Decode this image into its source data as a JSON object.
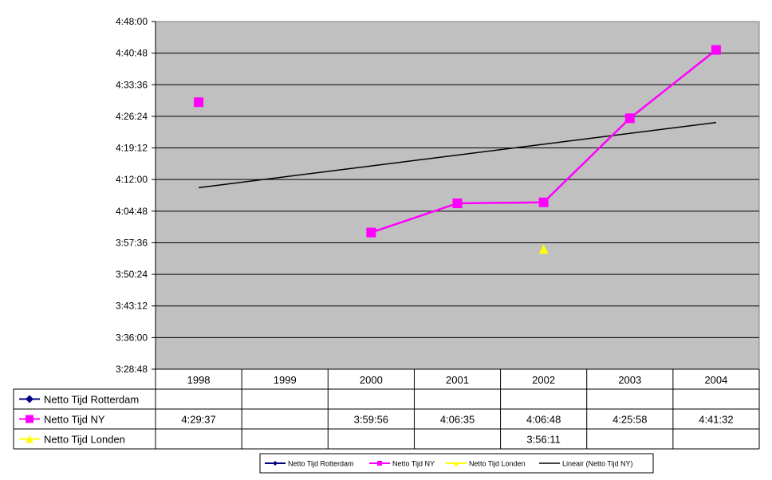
{
  "chart_data": {
    "type": "line",
    "categories": [
      "1998",
      "1999",
      "2000",
      "2001",
      "2002",
      "2003",
      "2004"
    ],
    "y_axis": {
      "min": "3:28:48",
      "max": "4:48:00",
      "step": "0:07:12",
      "tick_labels": [
        "4:48:00",
        "4:40:48",
        "4:33:36",
        "4:26:24",
        "4:19:12",
        "4:12:00",
        "4:04:48",
        "3:57:36",
        "3:50:24",
        "3:43:12",
        "3:36:00",
        "3:28:48"
      ]
    },
    "grid": true,
    "plot_background": "#c0c0c0",
    "series": [
      {
        "name": "Netto Tijd Rotterdam",
        "color": "#000080",
        "marker": "diamond",
        "values": [
          null,
          null,
          null,
          null,
          null,
          null,
          null
        ],
        "table_values": [
          "",
          "",
          "",
          "",
          "",
          "",
          ""
        ]
      },
      {
        "name": "Netto Tijd NY",
        "color": "#ff00ff",
        "marker": "square",
        "values": [
          "4:29:37",
          null,
          "3:59:56",
          "4:06:35",
          "4:06:48",
          "4:25:58",
          "4:41:32"
        ],
        "table_values": [
          "4:29:37",
          "",
          "3:59:56",
          "4:06:35",
          "4:06:48",
          "4:25:58",
          "4:41:32"
        ]
      },
      {
        "name": "Netto Tijd Londen",
        "color": "#ffff00",
        "marker": "triangle",
        "values": [
          null,
          null,
          null,
          null,
          "3:56:11",
          null,
          null
        ],
        "table_values": [
          "",
          "",
          "",
          "",
          "3:56:11",
          "",
          ""
        ]
      }
    ],
    "trendline": {
      "name": "Lineair (Netto Tijd NY)",
      "color": "#000000",
      "of_series": "Netto Tijd NY",
      "type": "linear"
    },
    "legend": {
      "placement": "bottom",
      "entries": [
        "Netto Tijd Rotterdam",
        "Netto Tijd NY",
        "Netto Tijd Londen",
        "Lineair (Netto Tijd NY)"
      ]
    }
  }
}
